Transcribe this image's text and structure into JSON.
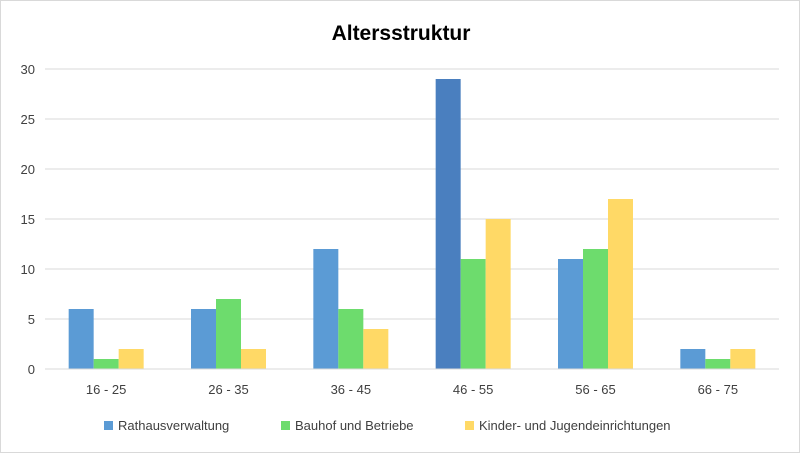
{
  "chart_data": {
    "type": "bar",
    "title": "Altersstruktur",
    "xlabel": "",
    "ylabel": "",
    "categories": [
      "16 - 25",
      "26 - 35",
      "36 - 45",
      "46 - 55",
      "56 - 65",
      "66 - 75"
    ],
    "series": [
      {
        "name": "Rathausverwaltung",
        "color": "#5b9bd5",
        "values": [
          6,
          6,
          12,
          29,
          11,
          2
        ]
      },
      {
        "name": "Bauhof und Betriebe",
        "color": "#6ddc6d",
        "values": [
          1,
          7,
          6,
          11,
          12,
          1
        ]
      },
      {
        "name": "Kinder- und Jugendeinrichtungen",
        "color": "#ffd966",
        "values": [
          2,
          2,
          4,
          15,
          17,
          2
        ]
      }
    ],
    "highlight": {
      "series": 0,
      "category": 3,
      "color": "#4a7fbf"
    },
    "ylim": [
      0,
      30
    ],
    "yticks": [
      0,
      5,
      10,
      15,
      20,
      25,
      30
    ],
    "grid": true,
    "legend_position": "bottom"
  }
}
